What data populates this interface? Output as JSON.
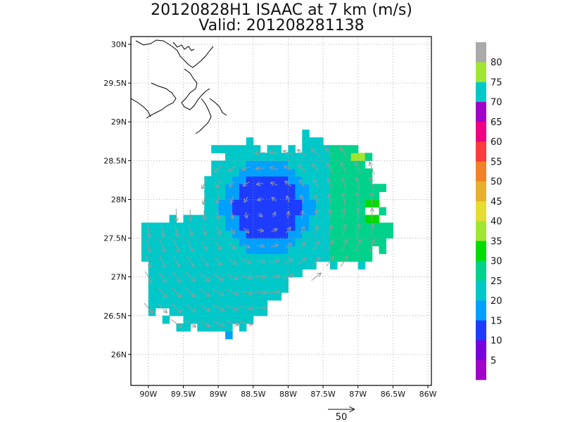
{
  "title": {
    "line1": "20120828H1 ISAAC at 7 km (m/s)",
    "line2": "Valid: 201208281138"
  },
  "axes": {
    "lat_labels": [
      "30N",
      "29.5N",
      "29N",
      "28.5N",
      "28N",
      "27.5N",
      "27N",
      "26.5N",
      "26N"
    ],
    "lat_values": [
      30,
      29.5,
      29,
      28.5,
      28,
      27.5,
      27,
      26.5,
      26
    ],
    "lon_labels": [
      "90W",
      "89.5W",
      "89W",
      "88.5W",
      "88W",
      "87.5W",
      "87W",
      "86.5W",
      "86W"
    ],
    "lon_values": [
      -90,
      -89.5,
      -89,
      -88.5,
      -88,
      -87.5,
      -87,
      -86.5,
      -86
    ],
    "lat_range": [
      25.6,
      30.1
    ],
    "lon_range": [
      -90.25,
      -85.95
    ],
    "grid": "dotted"
  },
  "colorbar": {
    "labels": [
      "5",
      "10",
      "15",
      "20",
      "25",
      "30",
      "35",
      "40",
      "45",
      "50",
      "55",
      "60",
      "65",
      "70",
      "75",
      "80"
    ],
    "colors": [
      "#a000c8",
      "#7800dc",
      "#1e3cff",
      "#00a0ff",
      "#00c8c8",
      "#00d28c",
      "#00dc00",
      "#a0e632",
      "#e6dc32",
      "#e6af2d",
      "#f08228",
      "#fa3c3c",
      "#f00082",
      "#a000c8",
      "#00c8c8",
      "#a0e632",
      "#aaaaaa"
    ]
  },
  "reference_vector": {
    "label": "50"
  },
  "wind_field": {
    "center": {
      "lon": -88.35,
      "lat": 27.85
    },
    "grid_step_deg": 0.1,
    "cmap": [
      "#1e3cff",
      "#00a0ff",
      "#00c8c8",
      "#00d28c",
      "#00dc00",
      "#a0e632"
    ]
  }
}
